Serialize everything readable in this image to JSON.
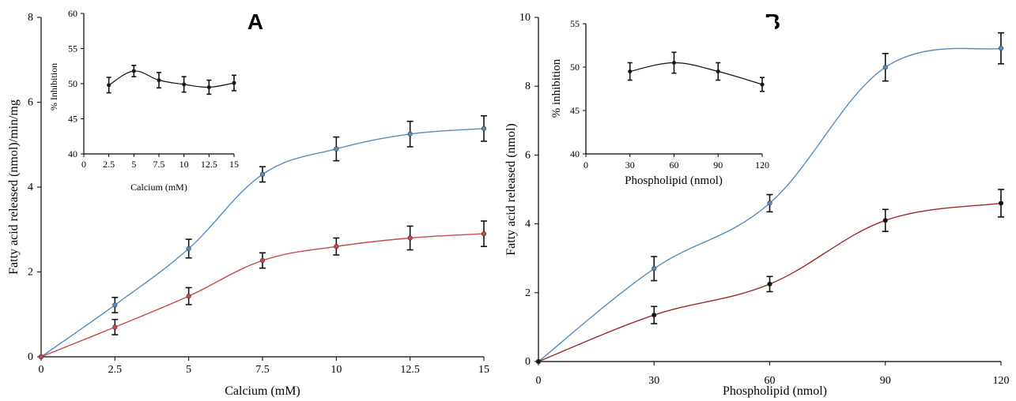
{
  "colors": {
    "blue": "#5b8bbf",
    "red": "#9e2a2a",
    "black": "#111111"
  },
  "chart_data": [
    {
      "id": "A",
      "panel": "A",
      "type": "line",
      "xlabel": "Calcium (mM)",
      "ylabel": "Fatty acid released (nmol)/min/mg",
      "xlim": [
        0,
        15
      ],
      "ylim": [
        0,
        8
      ],
      "xticks": [
        0,
        2.5,
        5,
        7.5,
        10,
        12.5,
        15
      ],
      "xtick_labels": [
        "0",
        "2.5",
        "5",
        "7.5",
        "10",
        "12.5",
        "15"
      ],
      "yticks": [
        0,
        2,
        4,
        6,
        8
      ],
      "ytick_labels": [
        "0",
        "2",
        "4",
        "6",
        "8"
      ],
      "series": [
        {
          "color": "#5b8bbf",
          "x": [
            0,
            2.5,
            5,
            7.5,
            10,
            12.5,
            15
          ],
          "y": [
            0,
            1.22,
            2.55,
            4.3,
            4.9,
            5.25,
            5.38
          ],
          "err": [
            0,
            0.18,
            0.22,
            0.18,
            0.28,
            0.3,
            0.3
          ]
        },
        {
          "color": "#c94a4a",
          "x": [
            0,
            2.5,
            5,
            7.5,
            10,
            12.5,
            15
          ],
          "y": [
            0,
            0.7,
            1.43,
            2.27,
            2.6,
            2.8,
            2.9
          ],
          "err": [
            0,
            0.18,
            0.2,
            0.18,
            0.2,
            0.28,
            0.3
          ]
        }
      ]
    },
    {
      "id": "A-inset",
      "panel": "A",
      "type": "line",
      "xlabel": "Calcium (mM)",
      "ylabel": "% Inhibition",
      "xlim": [
        0,
        15
      ],
      "ylim": [
        40,
        60
      ],
      "xticks": [
        0,
        2.5,
        5,
        7.5,
        10,
        12.5,
        15
      ],
      "xtick_labels": [
        "0",
        "2.5",
        "5",
        "7.5",
        "10",
        "12.5",
        "15"
      ],
      "yticks": [
        40,
        45,
        50,
        55,
        60
      ],
      "ytick_labels": [
        "40",
        "45",
        "50",
        "55",
        "60"
      ],
      "series": [
        {
          "color": "#111111",
          "x": [
            2.5,
            5,
            7.5,
            10,
            12.5,
            15
          ],
          "y": [
            49.8,
            51.8,
            50.5,
            49.9,
            49.5,
            50.1
          ],
          "err": [
            1.1,
            0.8,
            1.1,
            1.1,
            1.0,
            1.1
          ]
        }
      ]
    },
    {
      "id": "B",
      "panel": "B",
      "type": "line",
      "xlabel": "Phospholipid  (nmol)",
      "ylabel": "Fatty acid released (nmol)",
      "xlim": [
        0,
        120
      ],
      "ylim": [
        0,
        10
      ],
      "xticks": [
        0,
        30,
        60,
        90,
        120
      ],
      "xtick_labels": [
        "0",
        "30",
        "60",
        "90",
        "120"
      ],
      "yticks": [
        0,
        2,
        4,
        6,
        8,
        10
      ],
      "ytick_labels": [
        "0",
        "2",
        "4",
        "6",
        "8",
        "10"
      ],
      "series": [
        {
          "color": "#5b8bbf",
          "x": [
            0,
            30,
            60,
            90,
            120
          ],
          "y": [
            0,
            2.7,
            4.6,
            8.55,
            9.1
          ],
          "err": [
            0,
            0.35,
            0.25,
            0.4,
            0.45
          ]
        },
        {
          "color": "#9e2a2a",
          "x": [
            0,
            30,
            60,
            90,
            120
          ],
          "y": [
            0,
            1.35,
            2.25,
            4.1,
            4.6
          ],
          "err": [
            0,
            0.25,
            0.22,
            0.32,
            0.4
          ]
        }
      ]
    },
    {
      "id": "B-inset",
      "panel": "B",
      "type": "line",
      "xlabel": "Phospholipid (nmol)",
      "ylabel": "% inhibition",
      "xlim": [
        0,
        120
      ],
      "ylim": [
        40,
        55
      ],
      "xticks": [
        0,
        30,
        60,
        90,
        120
      ],
      "xtick_labels": [
        "0",
        "30",
        "60",
        "90",
        "120"
      ],
      "yticks": [
        40,
        45,
        50,
        55
      ],
      "ytick_labels": [
        "40",
        "45",
        "50",
        "55"
      ],
      "series": [
        {
          "color": "#111111",
          "x": [
            30,
            60,
            90,
            120
          ],
          "y": [
            49.5,
            50.5,
            49.5,
            48.0
          ],
          "err": [
            1.0,
            1.2,
            1.0,
            0.8
          ]
        }
      ]
    }
  ]
}
